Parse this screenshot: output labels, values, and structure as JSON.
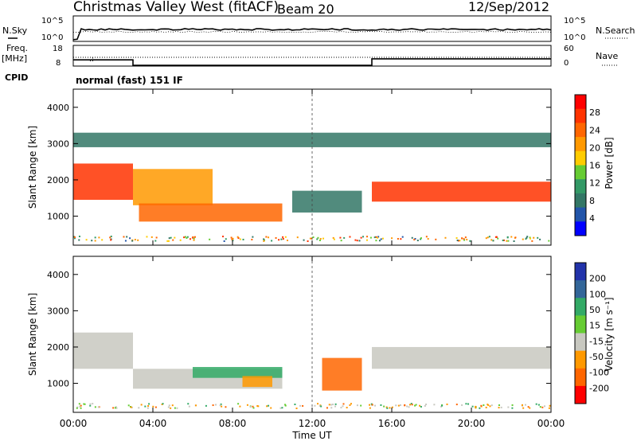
{
  "header": {
    "title": "Christmas Valley West (fitACF)",
    "beam": "Beam 20",
    "date": "12/Sep/2012"
  },
  "strips": {
    "nsky_label": "N.Sky",
    "nsky_ticks": [
      "10^5",
      "10^0"
    ],
    "nsearch_label": "N.Search",
    "nsearch_ticks": [
      "10^5",
      "10^0"
    ],
    "freq_label_1": "Freq.",
    "freq_label_2": "[MHz]",
    "freq_ticks": [
      "18",
      "8"
    ],
    "nave_label": "Nave",
    "nave_ticks": [
      "60",
      "0"
    ],
    "cpid_label": "CPID",
    "cpid_text": "normal (fast) 151 IF"
  },
  "colorbars": {
    "power": {
      "label": "Power [dB]",
      "ticks": [
        "28",
        "24",
        "20",
        "16",
        "12",
        "8",
        "4"
      ],
      "colors": [
        "#ff0000",
        "#ff3300",
        "#ff6600",
        "#ff9900",
        "#ffcc00",
        "#66cc33",
        "#339966",
        "#337766",
        "#2255aa",
        "#0000ff"
      ]
    },
    "velocity": {
      "label": "Velocity [m s⁻¹]",
      "ticks": [
        "200",
        "100",
        "50",
        "15",
        "-15",
        "-50",
        "-100",
        "-200"
      ],
      "colors": [
        "#2233aa",
        "#336699",
        "#33aa66",
        "#66cc33",
        "#c8c8c0",
        "#ff9900",
        "#ff6600",
        "#ff0000"
      ]
    }
  },
  "axes": {
    "ylabel": "Slant Range [km]",
    "xlabel": "Time UT"
  },
  "chart_data": [
    {
      "type": "heatmap",
      "name": "power",
      "xlim": [
        "00:00",
        "24:00"
      ],
      "ylim": [
        200,
        4500
      ],
      "x_ticks": [
        "00:00",
        "04:00",
        "08:00",
        "12:00",
        "16:00",
        "20:00",
        "00:00"
      ],
      "y_ticks": [
        1000,
        2000,
        3000,
        4000
      ],
      "bands": [
        {
          "t": [
            0,
            3
          ],
          "range": [
            1450,
            2450
          ],
          "power": 26
        },
        {
          "t": [
            3,
            7
          ],
          "range": [
            1300,
            2300
          ],
          "power": 20
        },
        {
          "t": [
            3.3,
            10.5
          ],
          "range": [
            850,
            1350
          ],
          "power": 22
        },
        {
          "t": [
            15,
            24
          ],
          "range": [
            1400,
            1950
          ],
          "power": 27
        },
        {
          "t": [
            0,
            24
          ],
          "range": [
            2900,
            3300
          ],
          "power": 8
        },
        {
          "t": [
            11,
            14.5
          ],
          "range": [
            1100,
            1700
          ],
          "power": 6
        }
      ]
    },
    {
      "type": "heatmap",
      "name": "velocity",
      "xlim": [
        "00:00",
        "24:00"
      ],
      "ylim": [
        200,
        4500
      ],
      "x_ticks": [
        "00:00",
        "04:00",
        "08:00",
        "12:00",
        "16:00",
        "20:00",
        "00:00"
      ],
      "y_ticks": [
        1000,
        2000,
        3000,
        4000
      ],
      "bands": [
        {
          "t": [
            0,
            3
          ],
          "range": [
            1400,
            2400
          ],
          "velocity": 0
        },
        {
          "t": [
            3,
            10.5
          ],
          "range": [
            850,
            1400
          ],
          "velocity": 0
        },
        {
          "t": [
            15,
            24
          ],
          "range": [
            1400,
            2000
          ],
          "velocity": 0
        },
        {
          "t": [
            6,
            10.5
          ],
          "range": [
            1150,
            1450
          ],
          "velocity": 40
        },
        {
          "t": [
            8.5,
            10
          ],
          "range": [
            900,
            1200
          ],
          "velocity": -40
        },
        {
          "t": [
            12.5,
            14.5
          ],
          "range": [
            800,
            1700
          ],
          "velocity": -60
        }
      ]
    }
  ]
}
